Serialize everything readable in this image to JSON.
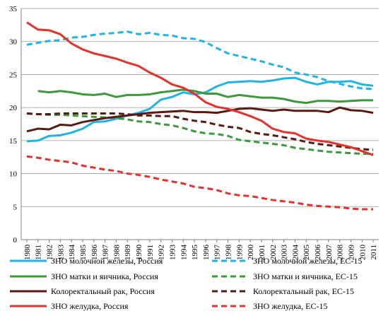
{
  "chart_data": {
    "type": "line",
    "title": "",
    "xlabel": "",
    "ylabel": "",
    "ylim": [
      0,
      35
    ],
    "yticks": [
      0,
      5,
      10,
      15,
      20,
      25,
      30,
      35
    ],
    "grid": "horizontal",
    "legend_position": "bottom",
    "x": [
      1980,
      1981,
      1982,
      1983,
      1984,
      1985,
      1986,
      1987,
      1988,
      1989,
      1990,
      1991,
      1992,
      1993,
      1994,
      1995,
      1996,
      1997,
      1998,
      1999,
      2000,
      2001,
      2002,
      2003,
      2004,
      2005,
      2006,
      2007,
      2008,
      2009,
      2010,
      2011
    ],
    "series": [
      {
        "name": "ЗНО молочной железы, Россия",
        "color": "#1fb4e6",
        "dash": false,
        "values": [
          14.9,
          15.0,
          15.7,
          15.8,
          16.2,
          16.8,
          17.8,
          17.9,
          18.3,
          18.8,
          19.2,
          19.8,
          21.2,
          21.6,
          22.3,
          22.0,
          22.3,
          23.2,
          23.8,
          23.9,
          24.0,
          23.9,
          24.1,
          24.4,
          24.5,
          23.9,
          23.5,
          23.9,
          23.9,
          24.0,
          23.5,
          23.3
        ]
      },
      {
        "name": "ЗНО молочной железы, ЕС-15",
        "color": "#1fb4e6",
        "dash": true,
        "values": [
          29.5,
          29.8,
          30.1,
          30.2,
          30.6,
          30.7,
          31.0,
          31.2,
          31.3,
          31.5,
          31.1,
          31.3,
          31.0,
          30.9,
          30.5,
          30.4,
          29.9,
          29.0,
          28.2,
          27.8,
          27.4,
          27.0,
          26.5,
          26.1,
          25.3,
          25.0,
          24.6,
          24.0,
          23.6,
          23.2,
          22.9,
          22.8
        ]
      },
      {
        "name": "ЗНО матки и яичника, Россия",
        "color": "#3b9a3b",
        "dash": false,
        "values": [
          null,
          22.5,
          22.3,
          22.5,
          22.3,
          22.0,
          21.9,
          22.1,
          21.6,
          21.9,
          21.9,
          22.0,
          22.3,
          22.5,
          22.7,
          22.5,
          22.1,
          22.1,
          21.6,
          21.9,
          21.7,
          21.5,
          21.5,
          21.3,
          20.9,
          20.7,
          21.0,
          21.0,
          20.9,
          21.0,
          21.1,
          21.1
        ]
      },
      {
        "name": "ЗНО матки и яичника, ЕС-15",
        "color": "#3b9a3b",
        "dash": true,
        "values": [
          19.1,
          19.0,
          18.9,
          18.9,
          18.8,
          18.7,
          18.6,
          18.5,
          18.4,
          18.2,
          17.9,
          17.8,
          17.5,
          17.3,
          16.9,
          16.4,
          16.1,
          16.0,
          15.7,
          15.1,
          14.9,
          14.7,
          14.5,
          14.3,
          13.9,
          13.7,
          13.5,
          13.3,
          13.2,
          13.1,
          13.0,
          13.0
        ]
      },
      {
        "name": "Колоректальный рак, Россия",
        "color": "#5a1a14",
        "dash": false,
        "values": [
          16.4,
          16.8,
          16.7,
          17.4,
          17.3,
          17.8,
          18.1,
          18.4,
          18.6,
          18.8,
          19.0,
          19.2,
          19.3,
          19.4,
          19.5,
          19.3,
          19.3,
          19.2,
          19.5,
          19.8,
          19.9,
          19.7,
          19.5,
          19.7,
          19.5,
          19.5,
          19.5,
          19.3,
          20.0,
          19.6,
          19.5,
          19.2
        ]
      },
      {
        "name": "Колоректальный рак, ЕС-15",
        "color": "#5a1a14",
        "dash": true,
        "values": [
          19.1,
          19.0,
          19.0,
          19.1,
          19.1,
          19.1,
          19.1,
          19.1,
          19.1,
          19.0,
          18.8,
          18.8,
          18.7,
          18.7,
          18.3,
          18.0,
          17.8,
          17.4,
          17.1,
          16.9,
          16.3,
          16.0,
          15.8,
          15.5,
          15.2,
          14.8,
          14.5,
          14.3,
          14.1,
          13.9,
          13.7,
          13.6
        ]
      },
      {
        "name": "ЗНО желудка, Россия",
        "color": "#e8302a",
        "dash": false,
        "values": [
          32.9,
          31.8,
          31.7,
          31.1,
          29.7,
          28.8,
          28.2,
          27.8,
          27.4,
          26.8,
          26.3,
          25.3,
          24.5,
          23.5,
          23.0,
          22.1,
          20.8,
          20.1,
          19.8,
          19.3,
          18.7,
          18.0,
          16.8,
          16.3,
          16.1,
          15.3,
          15.0,
          14.8,
          14.4,
          14.0,
          13.4,
          12.8
        ]
      },
      {
        "name": "ЗНО желудка, ЕС-15",
        "color": "#e8302a",
        "dash": true,
        "values": [
          12.6,
          12.4,
          12.1,
          11.9,
          11.7,
          11.2,
          10.9,
          10.6,
          10.4,
          10.0,
          9.8,
          9.5,
          9.1,
          8.8,
          8.5,
          8.0,
          7.8,
          7.5,
          7.0,
          6.7,
          6.6,
          6.3,
          6.0,
          5.8,
          5.6,
          5.3,
          5.1,
          5.0,
          4.9,
          4.7,
          4.6,
          4.6
        ]
      }
    ]
  }
}
